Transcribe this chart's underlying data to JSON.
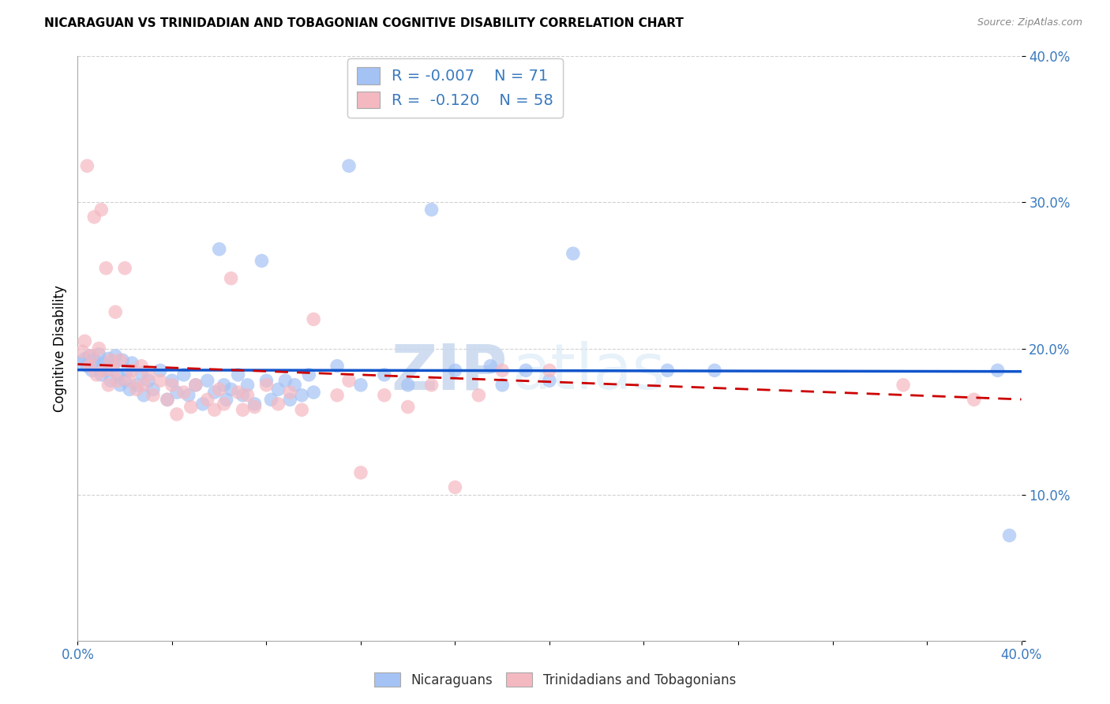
{
  "title": "NICARAGUAN VS TRINIDADIAN AND TOBAGONIAN COGNITIVE DISABILITY CORRELATION CHART",
  "source": "Source: ZipAtlas.com",
  "ylabel": "Cognitive Disability",
  "xlim": [
    0.0,
    0.4
  ],
  "ylim": [
    0.0,
    0.4
  ],
  "x_tick_positions": [
    0.0,
    0.04,
    0.08,
    0.12,
    0.16,
    0.2,
    0.24,
    0.28,
    0.32,
    0.36,
    0.4
  ],
  "x_tick_labels_show": {
    "0.0": "0.0%",
    "0.40": "40.0%"
  },
  "y_tick_positions": [
    0.0,
    0.1,
    0.2,
    0.3,
    0.4
  ],
  "y_tick_labels": [
    "",
    "10.0%",
    "20.0%",
    "30.0%",
    "40.0%"
  ],
  "legend_labels": [
    "Nicaraguans",
    "Trinidadians and Tobagonians"
  ],
  "nicaraguan_R": -0.007,
  "nicaraguan_N": 71,
  "trinidadian_R": -0.12,
  "trinidadian_N": 58,
  "blue_color": "#a4c2f4",
  "pink_color": "#f4b8c1",
  "blue_line_color": "#1155cc",
  "pink_line_color": "#cc0000",
  "blue_scatter": [
    [
      0.002,
      0.19
    ],
    [
      0.003,
      0.193
    ],
    [
      0.004,
      0.188
    ],
    [
      0.005,
      0.195
    ],
    [
      0.006,
      0.185
    ],
    [
      0.007,
      0.192
    ],
    [
      0.008,
      0.188
    ],
    [
      0.009,
      0.196
    ],
    [
      0.01,
      0.182
    ],
    [
      0.011,
      0.19
    ],
    [
      0.012,
      0.185
    ],
    [
      0.013,
      0.193
    ],
    [
      0.014,
      0.178
    ],
    [
      0.015,
      0.188
    ],
    [
      0.016,
      0.195
    ],
    [
      0.017,
      0.182
    ],
    [
      0.018,
      0.175
    ],
    [
      0.019,
      0.192
    ],
    [
      0.02,
      0.178
    ],
    [
      0.021,
      0.185
    ],
    [
      0.022,
      0.172
    ],
    [
      0.023,
      0.19
    ],
    [
      0.025,
      0.175
    ],
    [
      0.027,
      0.183
    ],
    [
      0.028,
      0.168
    ],
    [
      0.03,
      0.178
    ],
    [
      0.032,
      0.172
    ],
    [
      0.035,
      0.185
    ],
    [
      0.038,
      0.165
    ],
    [
      0.04,
      0.178
    ],
    [
      0.042,
      0.17
    ],
    [
      0.045,
      0.182
    ],
    [
      0.047,
      0.168
    ],
    [
      0.05,
      0.175
    ],
    [
      0.053,
      0.162
    ],
    [
      0.055,
      0.178
    ],
    [
      0.058,
      0.17
    ],
    [
      0.06,
      0.268
    ],
    [
      0.062,
      0.175
    ],
    [
      0.063,
      0.165
    ],
    [
      0.065,
      0.172
    ],
    [
      0.068,
      0.182
    ],
    [
      0.07,
      0.168
    ],
    [
      0.072,
      0.175
    ],
    [
      0.075,
      0.162
    ],
    [
      0.078,
      0.26
    ],
    [
      0.08,
      0.178
    ],
    [
      0.082,
      0.165
    ],
    [
      0.085,
      0.172
    ],
    [
      0.088,
      0.178
    ],
    [
      0.09,
      0.165
    ],
    [
      0.092,
      0.175
    ],
    [
      0.095,
      0.168
    ],
    [
      0.098,
      0.182
    ],
    [
      0.1,
      0.17
    ],
    [
      0.11,
      0.188
    ],
    [
      0.115,
      0.325
    ],
    [
      0.12,
      0.175
    ],
    [
      0.13,
      0.182
    ],
    [
      0.14,
      0.175
    ],
    [
      0.15,
      0.295
    ],
    [
      0.16,
      0.185
    ],
    [
      0.175,
      0.188
    ],
    [
      0.18,
      0.175
    ],
    [
      0.19,
      0.185
    ],
    [
      0.2,
      0.178
    ],
    [
      0.21,
      0.265
    ],
    [
      0.25,
      0.185
    ],
    [
      0.27,
      0.185
    ],
    [
      0.39,
      0.185
    ],
    [
      0.395,
      0.072
    ]
  ],
  "pink_scatter": [
    [
      0.002,
      0.198
    ],
    [
      0.003,
      0.205
    ],
    [
      0.004,
      0.325
    ],
    [
      0.005,
      0.188
    ],
    [
      0.006,
      0.195
    ],
    [
      0.007,
      0.29
    ],
    [
      0.008,
      0.182
    ],
    [
      0.009,
      0.2
    ],
    [
      0.01,
      0.295
    ],
    [
      0.011,
      0.185
    ],
    [
      0.012,
      0.255
    ],
    [
      0.013,
      0.175
    ],
    [
      0.014,
      0.192
    ],
    [
      0.015,
      0.185
    ],
    [
      0.016,
      0.225
    ],
    [
      0.017,
      0.178
    ],
    [
      0.018,
      0.192
    ],
    [
      0.02,
      0.255
    ],
    [
      0.022,
      0.178
    ],
    [
      0.023,
      0.185
    ],
    [
      0.025,
      0.172
    ],
    [
      0.027,
      0.188
    ],
    [
      0.028,
      0.175
    ],
    [
      0.03,
      0.182
    ],
    [
      0.032,
      0.168
    ],
    [
      0.035,
      0.178
    ],
    [
      0.038,
      0.165
    ],
    [
      0.04,
      0.175
    ],
    [
      0.042,
      0.155
    ],
    [
      0.045,
      0.17
    ],
    [
      0.048,
      0.16
    ],
    [
      0.05,
      0.175
    ],
    [
      0.055,
      0.165
    ],
    [
      0.058,
      0.158
    ],
    [
      0.06,
      0.172
    ],
    [
      0.062,
      0.162
    ],
    [
      0.065,
      0.248
    ],
    [
      0.068,
      0.17
    ],
    [
      0.07,
      0.158
    ],
    [
      0.072,
      0.168
    ],
    [
      0.075,
      0.16
    ],
    [
      0.08,
      0.175
    ],
    [
      0.085,
      0.162
    ],
    [
      0.09,
      0.17
    ],
    [
      0.095,
      0.158
    ],
    [
      0.1,
      0.22
    ],
    [
      0.11,
      0.168
    ],
    [
      0.115,
      0.178
    ],
    [
      0.12,
      0.115
    ],
    [
      0.13,
      0.168
    ],
    [
      0.14,
      0.16
    ],
    [
      0.15,
      0.175
    ],
    [
      0.16,
      0.105
    ],
    [
      0.17,
      0.168
    ],
    [
      0.18,
      0.185
    ],
    [
      0.2,
      0.185
    ],
    [
      0.35,
      0.175
    ],
    [
      0.38,
      0.165
    ]
  ],
  "watermark_part1": "ZIP",
  "watermark_part2": "atlas"
}
